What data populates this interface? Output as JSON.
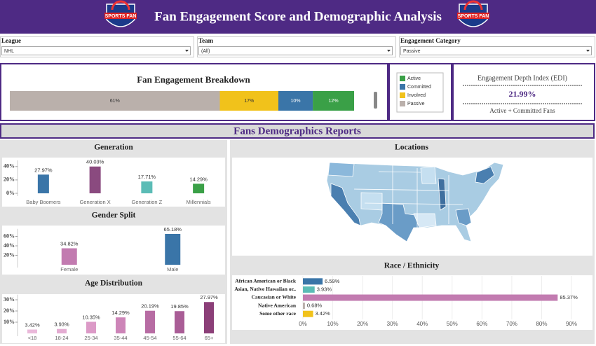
{
  "header": {
    "title": "Fan Engagement Score and Demographic Analysis",
    "logo_text": "SPORTS FAN"
  },
  "filters": [
    {
      "label": "League",
      "value": "NHL"
    },
    {
      "label": "Team",
      "value": "(All)"
    },
    {
      "label": "Engagement Category",
      "value": "Passive"
    }
  ],
  "kpi": {
    "title": "Engagement Depth Index (EDI)",
    "value": "21.99%",
    "subtitle": "Active + Committed Fans"
  },
  "section_title": "Fans Demographics Reports",
  "chart_data": [
    {
      "type": "stacked-bar",
      "orientation": "horizontal",
      "title": "Fan Engagement Breakdown",
      "xlim": [
        0,
        100
      ],
      "series": [
        {
          "name": "Passive",
          "color": "#bab0ab",
          "values": [
            61
          ],
          "value_labels": [
            "61%"
          ]
        },
        {
          "name": "Involved",
          "color": "#f1c21b",
          "values": [
            17
          ],
          "value_labels": [
            "17%"
          ]
        },
        {
          "name": "Committed",
          "color": "#3a75a8",
          "values": [
            10
          ],
          "value_labels": [
            "10%"
          ]
        },
        {
          "name": "Active",
          "color": "#3aa047",
          "values": [
            12
          ],
          "value_labels": [
            "12%"
          ]
        }
      ]
    },
    {
      "type": "bar",
      "title": "Generation",
      "categories": [
        "Baby Boomers",
        "Generation X",
        "Generation Z",
        "Millennials"
      ],
      "values": [
        27.97,
        40.03,
        17.71,
        14.29
      ],
      "value_labels": [
        "27.97%",
        "40.03%",
        "17.71%",
        "14.29%"
      ],
      "colors": [
        "#3a75a8",
        "#8a4a7f",
        "#5bbcb6",
        "#3aa047"
      ],
      "ylim": [
        0,
        45
      ],
      "yticks": [
        {
          "value": 0,
          "label": "0%"
        },
        {
          "value": 20,
          "label": "20%"
        },
        {
          "value": 40,
          "label": "40%"
        }
      ]
    },
    {
      "type": "bar",
      "title": "Gender Split",
      "categories": [
        "Female",
        "Male"
      ],
      "values": [
        34.82,
        65.18
      ],
      "value_labels": [
        "34.82%",
        "65.18%"
      ],
      "colors": [
        "#c27bb0",
        "#3a75a8"
      ],
      "ylim": [
        0,
        70
      ],
      "yticks": [
        {
          "value": 20,
          "label": "20%"
        },
        {
          "value": 40,
          "label": "40%"
        },
        {
          "value": 60,
          "label": "60%"
        }
      ]
    },
    {
      "type": "bar",
      "title": "Age Distribution",
      "categories": [
        "<18",
        "18-24",
        "25-34",
        "35-44",
        "45-54",
        "55-64",
        "65+"
      ],
      "values": [
        3.42,
        3.93,
        10.35,
        14.29,
        20.19,
        19.85,
        27.97
      ],
      "value_labels": [
        "3.42%",
        "3.93%",
        "10.35%",
        "14.29%",
        "20.19%",
        "19.85%",
        "27.97%"
      ],
      "colors": [
        "#eab9da",
        "#e4acd2",
        "#dc9ac7",
        "#cd85b8",
        "#b76ca3",
        "#a95d96",
        "#8b3f78"
      ],
      "ylim": [
        0,
        32
      ],
      "yticks": [
        {
          "value": 10,
          "label": "10%"
        },
        {
          "value": 20,
          "label": "20%"
        },
        {
          "value": 30,
          "label": "30%"
        }
      ]
    },
    {
      "type": "map",
      "title": "Locations"
    },
    {
      "type": "bar",
      "orientation": "horizontal",
      "title": "Race / Ethnicity",
      "categories": [
        "African American or Black",
        "Asian, Native Hawaiian or..",
        "Caucasian or White",
        "Native American",
        "Some other race"
      ],
      "values": [
        6.59,
        3.93,
        85.37,
        0.68,
        3.42
      ],
      "value_labels": [
        "6.59%",
        "3.93%",
        "85.37%",
        "0.68%",
        "3.42%"
      ],
      "colors": [
        "#3a75a8",
        "#5bbcb6",
        "#c27bb0",
        "#bab0ab",
        "#f1c21b"
      ],
      "xlim": [
        0,
        93
      ],
      "xticks": [
        {
          "value": 0,
          "label": "0%"
        },
        {
          "value": 10,
          "label": "10%"
        },
        {
          "value": 20,
          "label": "20%"
        },
        {
          "value": 30,
          "label": "30%"
        },
        {
          "value": 40,
          "label": "40%"
        },
        {
          "value": 50,
          "label": "50%"
        },
        {
          "value": 60,
          "label": "60%"
        },
        {
          "value": 70,
          "label": "70%"
        },
        {
          "value": 80,
          "label": "80%"
        },
        {
          "value": 90,
          "label": "90%"
        }
      ]
    }
  ]
}
